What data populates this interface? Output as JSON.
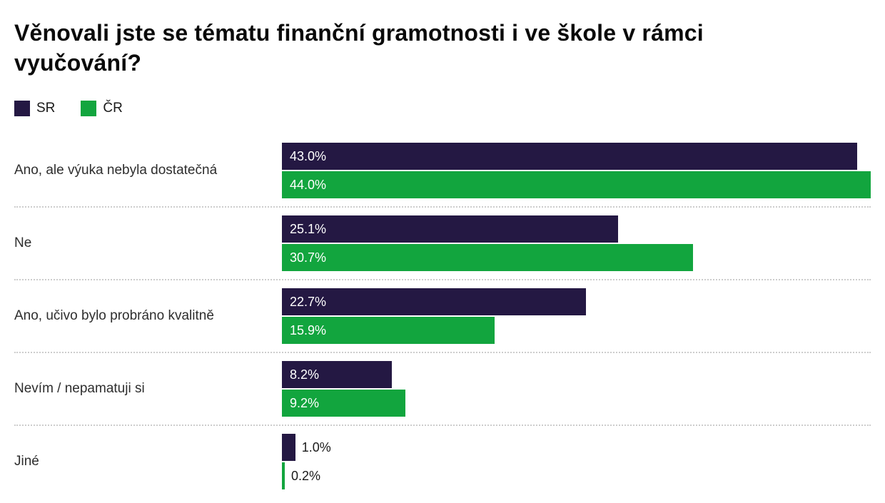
{
  "title": "Věnovali jste se tématu finanční gramotnosti i ve škole v rámci vyučování?",
  "legend": [
    {
      "label": "SR",
      "color": "#241843"
    },
    {
      "label": "ČR",
      "color": "#12a53e"
    }
  ],
  "chart_data": {
    "type": "bar",
    "orientation": "horizontal",
    "title": "Věnovali jste se tématu finanční gramotnosti i ve škole v rámci vyučování?",
    "categories": [
      "Ano, ale výuka nebyla dostatečná",
      "Ne",
      "Ano, učivo bylo probráno kvalitně",
      "Nevím / nepamatuji si",
      "Jiné"
    ],
    "series": [
      {
        "name": "SR",
        "color": "#241843",
        "values": [
          43.0,
          25.1,
          22.7,
          8.2,
          1.0
        ],
        "labels": [
          "43.0%",
          "25.1%",
          "22.7%",
          "8.2%",
          "1.0%"
        ]
      },
      {
        "name": "ČR",
        "color": "#12a53e",
        "values": [
          44.0,
          30.7,
          15.9,
          9.2,
          0.2
        ],
        "labels": [
          "44.0%",
          "30.7%",
          "15.9%",
          "9.2%",
          "0.2%"
        ]
      }
    ],
    "xlim": [
      0,
      44
    ],
    "grid": false,
    "legend_position": "top-left",
    "separator_style": "dotted",
    "value_label_inside_color": "#ffffff",
    "value_label_outside_color": "#1a1a1a",
    "background_color": "#ffffff"
  }
}
